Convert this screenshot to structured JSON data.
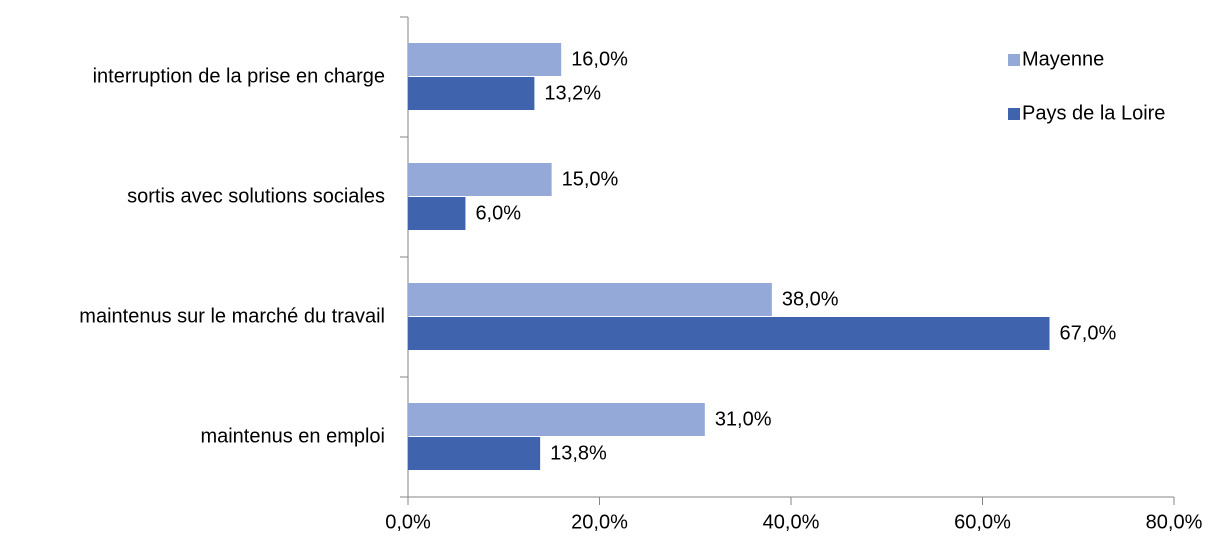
{
  "chart_data": {
    "type": "barh",
    "categories": [
      "interruption de la prise en charge",
      "sortis avec solutions sociales",
      "maintenus sur le marché du travail",
      "maintenus en emploi"
    ],
    "series": [
      {
        "name": "Mayenne",
        "color": "#95a9d9",
        "values": [
          16.0,
          15.0,
          38.0,
          31.0
        ],
        "value_labels": [
          "16,0%",
          "15,0%",
          "38,0%",
          "31,0%"
        ]
      },
      {
        "name": "Pays de la Loire",
        "color": "#3f64ad",
        "values": [
          13.2,
          6.0,
          67.0,
          13.8
        ],
        "value_labels": [
          "13,2%",
          "6,0%",
          "67,0%",
          "13,8%"
        ]
      }
    ],
    "xlim": [
      0,
      80
    ],
    "xticks": [
      {
        "value": 0,
        "label": "0,0%"
      },
      {
        "value": 20,
        "label": "20,0%"
      },
      {
        "value": 40,
        "label": "40,0%"
      },
      {
        "value": 60,
        "label": "60,0%"
      },
      {
        "value": 80,
        "label": "80,0%"
      }
    ],
    "legend": "top-right"
  }
}
